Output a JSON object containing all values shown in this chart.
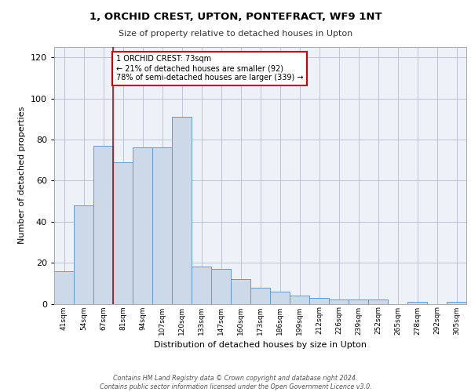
{
  "title": "1, ORCHID CREST, UPTON, PONTEFRACT, WF9 1NT",
  "subtitle": "Size of property relative to detached houses in Upton",
  "xlabel": "Distribution of detached houses by size in Upton",
  "ylabel": "Number of detached properties",
  "categories": [
    "41sqm",
    "54sqm",
    "67sqm",
    "81sqm",
    "94sqm",
    "107sqm",
    "120sqm",
    "133sqm",
    "147sqm",
    "160sqm",
    "173sqm",
    "186sqm",
    "199sqm",
    "212sqm",
    "226sqm",
    "239sqm",
    "252sqm",
    "265sqm",
    "278sqm",
    "292sqm",
    "305sqm"
  ],
  "values": [
    16,
    48,
    77,
    69,
    76,
    76,
    91,
    18,
    17,
    12,
    8,
    6,
    4,
    3,
    2,
    2,
    2,
    0,
    1,
    0,
    1
  ],
  "bar_color": "#ccd9e8",
  "bar_edge_color": "#6699cc",
  "vline_x": 2.5,
  "vline_color": "#cc0000",
  "annotation_text": "1 ORCHID CREST: 73sqm\n← 21% of detached houses are smaller (92)\n78% of semi-detached houses are larger (339) →",
  "annotation_box_color": "#ffffff",
  "annotation_box_edge": "#cc0000",
  "ylim": [
    0,
    125
  ],
  "yticks": [
    0,
    20,
    40,
    60,
    80,
    100,
    120
  ],
  "grid_color": "#bbbbcc",
  "background_color": "#edf2f8",
  "footer": "Contains HM Land Registry data © Crown copyright and database right 2024.\nContains public sector information licensed under the Open Government Licence v3.0."
}
